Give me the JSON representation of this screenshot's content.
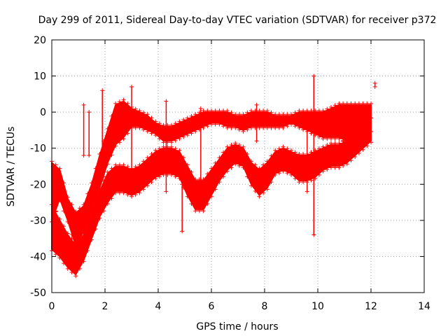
{
  "chart_data": {
    "type": "scatter",
    "title": "Day 299 of 2011, Sidereal Day-to-day VTEC variation (SDTVAR) for receiver p372",
    "xlabel": "GPS time / hours",
    "ylabel": "SDTVAR / TECUs",
    "xlim": [
      0,
      14
    ],
    "ylim": [
      -50,
      20
    ],
    "xticks": [
      "0",
      "2",
      "4",
      "6",
      "8",
      "10",
      "12",
      "14"
    ],
    "yticks": [
      "-50",
      "-40",
      "-30",
      "-20",
      "-10",
      "0",
      "10",
      "20"
    ],
    "grid": true,
    "marker": "+",
    "color": "#ff0000",
    "bands": [
      {
        "name": "upper",
        "x": [
          0.0,
          0.3,
          0.6,
          0.9,
          1.2,
          1.5,
          1.8,
          2.1,
          2.4,
          2.7,
          3.0,
          3.3,
          3.6,
          3.9,
          4.2,
          4.5,
          4.8,
          5.1,
          5.4,
          5.7,
          6.0,
          6.3,
          6.6,
          6.9,
          7.2,
          7.5,
          7.8,
          8.1,
          8.4,
          8.7,
          9.0,
          9.3,
          9.6,
          9.9,
          10.2,
          10.5,
          10.8,
          11.1,
          11.4,
          11.7,
          12.0
        ],
        "lo": [
          -30,
          -24,
          -30,
          -37,
          -33,
          -27,
          -21,
          -14,
          -9,
          -7,
          -4,
          -4,
          -5,
          -6,
          -8,
          -8,
          -7,
          -6,
          -5,
          -4,
          -3,
          -3,
          -4,
          -4,
          -5,
          -4,
          -4,
          -4,
          -4,
          -4,
          -3,
          -4,
          -5,
          -6,
          -7,
          -7,
          -7,
          -8,
          -7,
          -6,
          -5
        ],
        "hi": [
          -14,
          -16,
          -24,
          -28,
          -26,
          -20,
          -12,
          -5,
          2,
          3,
          1,
          0,
          -1,
          -3,
          -4,
          -4,
          -3,
          -2,
          -1,
          0,
          0,
          0,
          0,
          -1,
          -1,
          0,
          0,
          0,
          -1,
          -1,
          -1,
          0,
          0,
          0,
          0,
          1,
          2,
          2,
          2,
          2,
          2
        ]
      },
      {
        "name": "lower",
        "x": [
          0.0,
          0.3,
          0.6,
          0.9,
          1.2,
          1.5,
          1.8,
          2.1,
          2.4,
          2.7,
          3.0,
          3.3,
          3.6,
          3.9,
          4.2,
          4.5,
          4.8,
          5.1,
          5.4,
          5.7,
          6.0,
          6.3,
          6.6,
          6.9,
          7.2,
          7.5,
          7.8,
          8.1,
          8.4,
          8.7,
          9.0,
          9.3,
          9.6,
          9.9,
          10.2,
          10.5,
          10.8,
          11.1,
          11.4,
          11.7,
          12.0
        ],
        "lo": [
          -38,
          -40,
          -43,
          -45,
          -41,
          -35,
          -29,
          -25,
          -22,
          -22,
          -23,
          -22,
          -20,
          -18,
          -17,
          -17,
          -18,
          -23,
          -27,
          -27,
          -23,
          -19,
          -16,
          -14,
          -15,
          -20,
          -23,
          -21,
          -17,
          -16,
          -17,
          -19,
          -19,
          -18,
          -16,
          -15,
          -15,
          -14,
          -12,
          -10,
          -8
        ],
        "hi": [
          -26,
          -30,
          -34,
          -37,
          -34,
          -28,
          -22,
          -17,
          -15,
          -15,
          -16,
          -15,
          -13,
          -11,
          -10,
          -10,
          -11,
          -15,
          -19,
          -19,
          -16,
          -13,
          -10,
          -9,
          -10,
          -14,
          -16,
          -14,
          -11,
          -10,
          -11,
          -12,
          -12,
          -11,
          -10,
          -9,
          -9,
          -8,
          -6,
          -4,
          -2
        ]
      }
    ],
    "spikes": [
      {
        "x": 1.2,
        "lo": -12,
        "hi": 2
      },
      {
        "x": 1.4,
        "lo": -12,
        "hi": 0
      },
      {
        "x": 1.9,
        "lo": -15,
        "hi": 6
      },
      {
        "x": 3.0,
        "lo": -18,
        "hi": 7
      },
      {
        "x": 4.3,
        "lo": -22,
        "hi": 3
      },
      {
        "x": 4.9,
        "lo": -33,
        "hi": -20
      },
      {
        "x": 5.6,
        "lo": -22,
        "hi": 1
      },
      {
        "x": 7.7,
        "lo": -8,
        "hi": 2
      },
      {
        "x": 9.6,
        "lo": -22,
        "hi": 0
      },
      {
        "x": 9.85,
        "lo": -34,
        "hi": 10
      },
      {
        "x": 12.15,
        "lo": 7,
        "hi": 8
      }
    ]
  }
}
